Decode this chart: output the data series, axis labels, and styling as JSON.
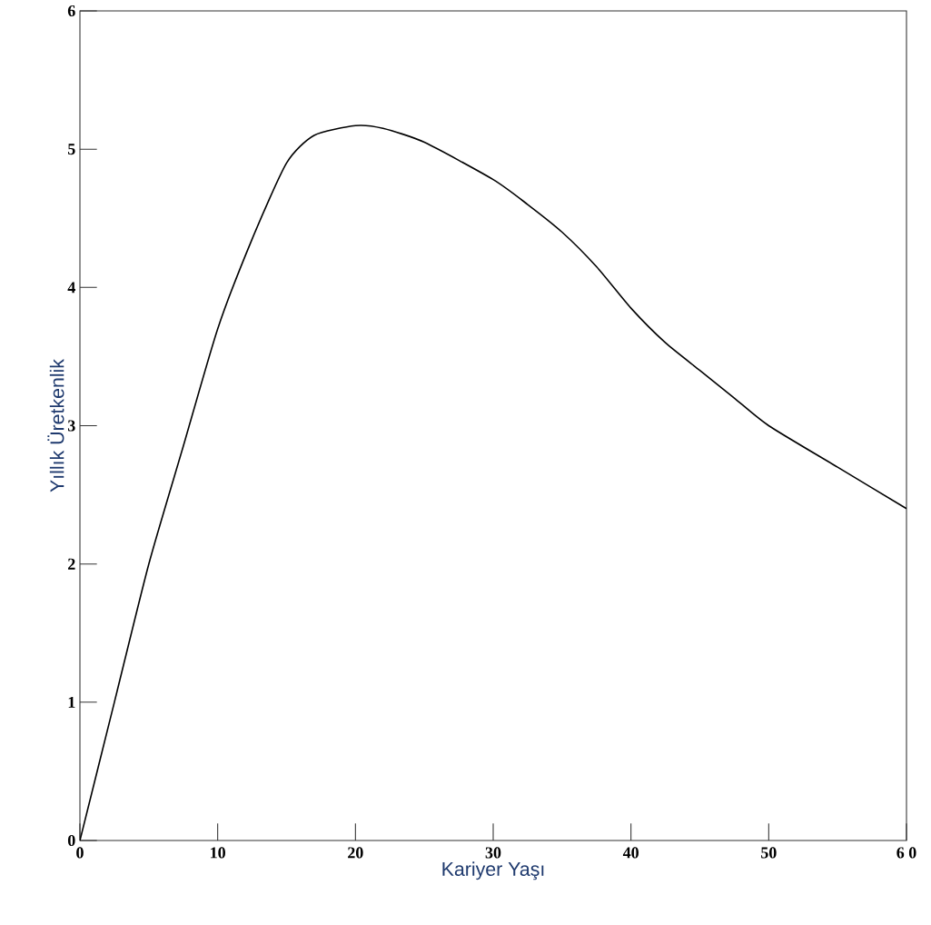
{
  "chart_data": {
    "type": "line",
    "xlabel": "Kariyer Yaşı",
    "ylabel": "Yıllık Üretkenlik",
    "x": [
      0,
      2.5,
      5,
      7.5,
      10,
      12.5,
      15,
      17,
      20,
      22,
      25,
      30,
      32.5,
      35,
      37.5,
      40,
      42.5,
      45,
      47.5,
      50,
      55,
      60
    ],
    "series": [
      {
        "color": "#000000",
        "values": [
          0,
          1.0,
          2.0,
          2.85,
          3.7,
          4.35,
          4.9,
          5.1,
          5.17,
          5.15,
          5.05,
          4.78,
          4.6,
          4.4,
          4.15,
          3.85,
          3.6,
          3.4,
          3.2,
          3.0,
          2.7,
          2.4
        ]
      }
    ],
    "xlim": [
      0,
      60
    ],
    "ylim": [
      0,
      6
    ],
    "xticks": [
      0,
      10,
      20,
      30,
      40,
      50,
      {
        "value": 60,
        "label": "6 0"
      }
    ],
    "yticks": [
      0,
      1,
      2,
      3,
      4,
      5,
      6
    ],
    "marker": "none",
    "line_style": "solid",
    "grid": false
  }
}
